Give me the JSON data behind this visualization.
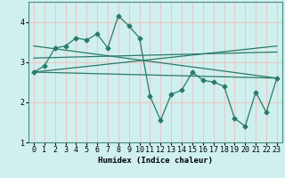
{
  "xlabel": "Humidex (Indice chaleur)",
  "bg_color": "#cff0ee",
  "plot_bg_color": "#cff0ee",
  "grid_color": "#e8c8c8",
  "line_color": "#2a7a68",
  "xlim": [
    -0.5,
    23.5
  ],
  "ylim": [
    1.0,
    4.5
  ],
  "yticks": [
    1,
    2,
    3,
    4
  ],
  "xticks": [
    0,
    1,
    2,
    3,
    4,
    5,
    6,
    7,
    8,
    9,
    10,
    11,
    12,
    13,
    14,
    15,
    16,
    17,
    18,
    19,
    20,
    21,
    22,
    23
  ],
  "series1_x": [
    0,
    1,
    2,
    3,
    4,
    5,
    6,
    7,
    8,
    9,
    10,
    11,
    12,
    13,
    14,
    15,
    16,
    17,
    18,
    19,
    20,
    21,
    22,
    23
  ],
  "series1_y": [
    2.75,
    2.9,
    3.35,
    3.4,
    3.6,
    3.55,
    3.7,
    3.35,
    4.15,
    3.9,
    3.6,
    2.15,
    1.55,
    2.2,
    2.3,
    2.75,
    2.55,
    2.5,
    2.4,
    1.6,
    1.4,
    2.25,
    1.75,
    2.6
  ],
  "trend1_x": [
    0,
    23
  ],
  "trend1_y": [
    2.75,
    2.6
  ],
  "trend2_x": [
    0,
    23
  ],
  "trend2_y": [
    3.1,
    3.25
  ],
  "trend3_x": [
    0,
    23
  ],
  "trend3_y": [
    2.75,
    3.4
  ],
  "trend4_x": [
    0,
    23
  ],
  "trend4_y": [
    3.4,
    2.6
  ]
}
